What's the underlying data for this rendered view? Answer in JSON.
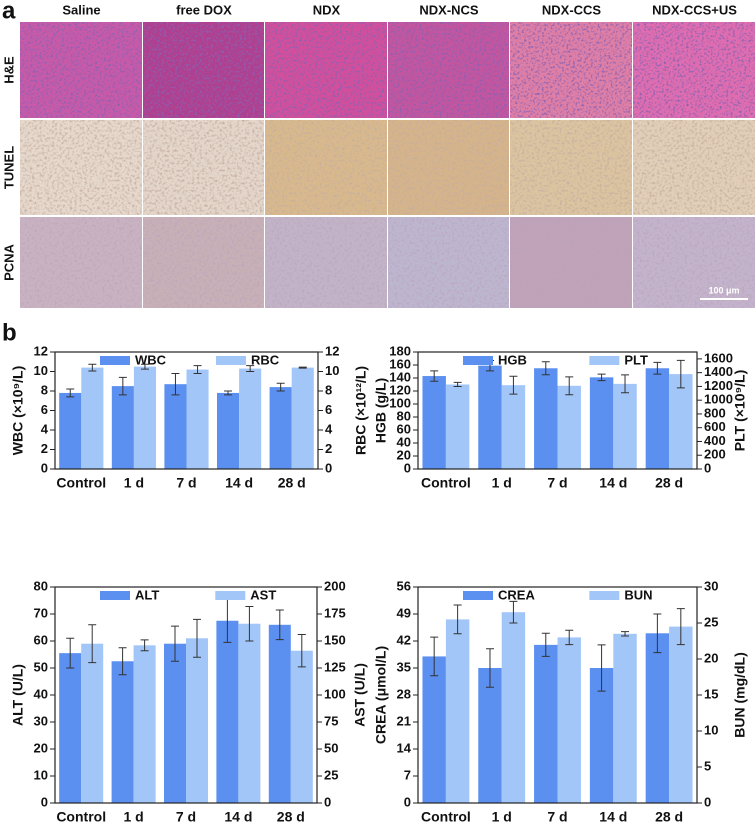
{
  "panel_a": {
    "label": "a",
    "columns": [
      "Saline",
      "free DOX",
      "NDX",
      "NDX-NCS",
      "NDX-CCS",
      "NDX-CCS+US"
    ],
    "rows": [
      "H&E",
      "TUNEL",
      "PCNA"
    ],
    "scale_bar": "100 μm"
  },
  "panel_b": {
    "label": "b"
  },
  "chart_data": [
    {
      "type": "bar",
      "categories": [
        "Control",
        "1 d",
        "7 d",
        "14 d",
        "28 d"
      ],
      "ylabel": "WBC (×10⁹/L)",
      "y2label": "RBC (×10¹²/L)",
      "ylim": [
        0,
        12
      ],
      "yticks": [
        0,
        2,
        4,
        6,
        8,
        10,
        12
      ],
      "y2lim": [
        0,
        12
      ],
      "y2ticks": [
        0,
        2,
        4,
        6,
        8,
        10,
        12
      ],
      "legend": "top",
      "series": [
        {
          "name": "WBC",
          "color": "#5b8ff0",
          "values": [
            7.8,
            8.5,
            8.7,
            7.8,
            8.4
          ],
          "errors": [
            0.4,
            0.9,
            1.1,
            0.2,
            0.4
          ]
        },
        {
          "name": "RBC",
          "color": "#a3c6f8",
          "axis": "y2",
          "values": [
            10.4,
            10.5,
            10.2,
            10.3,
            10.4
          ],
          "errors": [
            0.35,
            0.25,
            0.4,
            0.3,
            0.05
          ]
        }
      ]
    },
    {
      "type": "bar",
      "categories": [
        "Control",
        "1 d",
        "7 d",
        "14 d",
        "28 d"
      ],
      "ylabel": "HGB (g/L)",
      "y2label": "PLT (×10⁹/L)",
      "ylim": [
        0,
        180
      ],
      "yticks": [
        0,
        20,
        40,
        60,
        80,
        100,
        120,
        140,
        160,
        180
      ],
      "y2lim": [
        0,
        1700
      ],
      "y2ticks": [
        0,
        200,
        400,
        600,
        800,
        1000,
        1200,
        1400,
        1600
      ],
      "legend": "top",
      "series": [
        {
          "name": "HGB",
          "color": "#5b8ff0",
          "values": [
            143,
            159,
            155,
            141,
            155
          ],
          "errors": [
            8,
            8,
            10,
            5,
            9
          ]
        },
        {
          "name": "PLT",
          "color": "#a3c6f8",
          "axis": "y2",
          "values": [
            1228,
            1218,
            1209,
            1237,
            1379
          ],
          "errors": [
            30,
            130,
            130,
            130,
            200
          ]
        }
      ]
    },
    {
      "type": "bar",
      "categories": [
        "Control",
        "1 d",
        "7 d",
        "14 d",
        "28 d"
      ],
      "ylabel": "ALT (U/L)",
      "y2label": "AST (U/L)",
      "ylim": [
        0,
        80
      ],
      "yticks": [
        0,
        10,
        20,
        30,
        40,
        50,
        60,
        70,
        80
      ],
      "y2lim": [
        0,
        200
      ],
      "y2ticks": [
        0,
        25,
        50,
        75,
        100,
        125,
        150,
        175,
        200
      ],
      "legend": "top",
      "series": [
        {
          "name": "ALT",
          "color": "#5b8ff0",
          "values": [
            55.5,
            52.5,
            59,
            67.5,
            66
          ],
          "errors": [
            5.5,
            5,
            6.5,
            8,
            5.5
          ]
        },
        {
          "name": "AST",
          "color": "#a3c6f8",
          "axis": "y2",
          "values": [
            147.5,
            146,
            152.5,
            166,
            141
          ],
          "errors": [
            17.5,
            5,
            17.5,
            16,
            15
          ]
        }
      ]
    },
    {
      "type": "bar",
      "categories": [
        "Control",
        "1 d",
        "7 d",
        "14 d",
        "28 d"
      ],
      "ylabel": "CREA (μmol/L)",
      "y2label": "BUN (mg/dL)",
      "ylim": [
        0,
        56
      ],
      "yticks": [
        0,
        7,
        14,
        21,
        28,
        35,
        42,
        49,
        56
      ],
      "y2lim": [
        0,
        30
      ],
      "y2ticks": [
        0,
        5,
        10,
        15,
        20,
        25,
        30
      ],
      "legend": "top",
      "series": [
        {
          "name": "CREA",
          "color": "#5b8ff0",
          "values": [
            38,
            35,
            41,
            35,
            44
          ],
          "errors": [
            5,
            5,
            3,
            6,
            5
          ]
        },
        {
          "name": "BUN",
          "color": "#a3c6f8",
          "axis": "y2",
          "values": [
            25.5,
            26.5,
            23,
            23.5,
            24.5
          ],
          "errors": [
            2,
            1.5,
            1,
            0.3,
            2.5
          ]
        }
      ]
    }
  ]
}
